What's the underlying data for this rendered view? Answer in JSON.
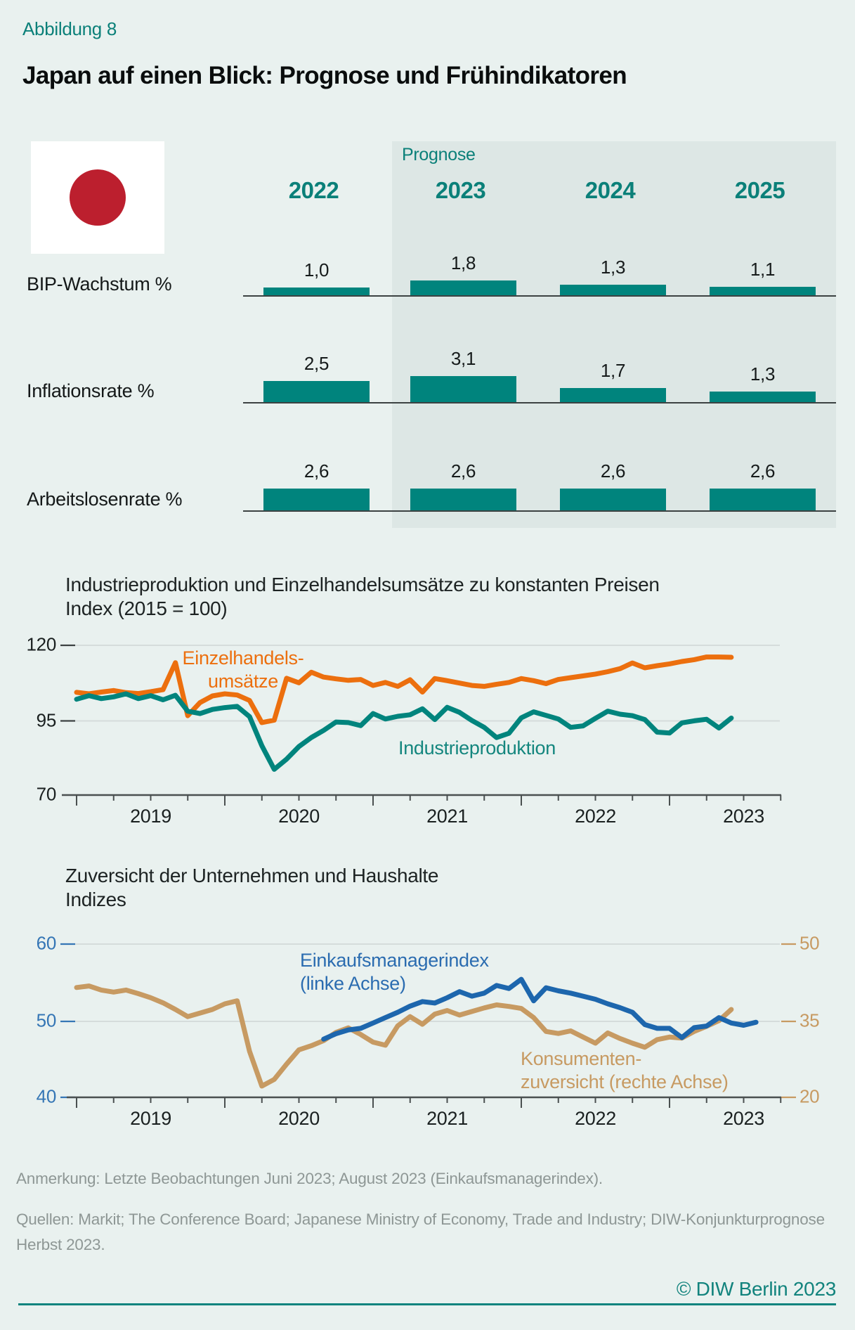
{
  "header": {
    "figure_label": "Abbildung 8",
    "title": "Japan auf einen Blick: Prognose und Frühindikatoren",
    "flag_icon": "japan-flag"
  },
  "colors": {
    "accent_teal": "#00847d",
    "teal_text": "#0b8079",
    "orange": "#ec6f0e",
    "blue": "#1d66ad",
    "tan": "#c79a62",
    "background": "#e9f1ef",
    "forecast_panel": "#dde7e5"
  },
  "forecast_table": {
    "prognose_label": "Prognose",
    "years": [
      "2022",
      "2023",
      "2024",
      "2025"
    ],
    "rows": [
      {
        "label": "BIP-Wachstum %",
        "values": [
          "1,0",
          "1,8",
          "1,3",
          "1,1"
        ],
        "numeric": [
          1.0,
          1.8,
          1.3,
          1.1
        ]
      },
      {
        "label": "Inflationsrate %",
        "values": [
          "2,5",
          "3,1",
          "1,7",
          "1,3"
        ],
        "numeric": [
          2.5,
          3.1,
          1.7,
          1.3
        ]
      },
      {
        "label": "Arbeitslosenrate %",
        "values": [
          "2,6",
          "2,6",
          "2,6",
          "2,6"
        ],
        "numeric": [
          2.6,
          2.6,
          2.6,
          2.6
        ]
      }
    ]
  },
  "chart_data": [
    {
      "type": "line",
      "title": "Industrieproduktion und Einzelhandelsumsätze zu konstanten Preisen",
      "subtitle": "Index (2015 = 100)",
      "x_start": "2019-01",
      "x_end": "2023-06",
      "x_frequency": "monthly",
      "x_tick_years": [
        "2019",
        "2020",
        "2021",
        "2022",
        "2023"
      ],
      "ylim": [
        70,
        120
      ],
      "yticks": [
        120,
        95,
        70
      ],
      "grid": "horizontal",
      "series": [
        {
          "name": "Einzelhandelsumsätze",
          "label_lines": [
            "Einzelhandels-",
            "umsätze"
          ],
          "color": "#ec6f0e",
          "start_month_offset": 0,
          "values": [
            104.3,
            103.8,
            104.4,
            104.9,
            104.2,
            103.9,
            104.5,
            105.2,
            114.2,
            96.5,
            100.9,
            103.1,
            103.8,
            103.4,
            101.6,
            94.2,
            95.0,
            109.0,
            107.5,
            111.0,
            109.4,
            108.8,
            108.3,
            108.6,
            106.6,
            107.6,
            106.3,
            108.5,
            104.4,
            108.9,
            108.2,
            107.4,
            106.6,
            106.3,
            107.0,
            107.6,
            108.9,
            108.2,
            107.2,
            108.6,
            109.2,
            109.8,
            110.4,
            111.2,
            112.2,
            114.1,
            112.5,
            113.2,
            113.8,
            114.6,
            115.2,
            116.1,
            116.1,
            116.0
          ]
        },
        {
          "name": "Industrieproduktion",
          "label_lines": [
            "Industrieproduktion"
          ],
          "color": "#00847d",
          "start_month_offset": 0,
          "values": [
            102.0,
            103.2,
            102.2,
            102.8,
            103.8,
            102.2,
            103.2,
            101.8,
            103.3,
            98.0,
            97.2,
            98.6,
            99.2,
            99.6,
            96.2,
            86.5,
            78.6,
            82.0,
            86.2,
            89.2,
            91.6,
            94.4,
            94.2,
            93.2,
            97.2,
            95.4,
            96.3,
            96.8,
            98.8,
            95.2,
            99.3,
            97.6,
            94.9,
            92.6,
            89.2,
            90.6,
            95.8,
            97.8,
            96.6,
            95.4,
            92.6,
            93.1,
            95.6,
            98.0,
            97.0,
            96.5,
            95.2,
            91.0,
            90.7,
            94.1,
            94.8,
            95.3,
            92.4,
            95.7
          ]
        }
      ]
    },
    {
      "type": "line",
      "title": "Zuversicht der Unternehmen und Haushalte",
      "subtitle": "Indizes",
      "x_start": "2019-01",
      "x_end": "2023-08",
      "x_frequency": "monthly",
      "x_tick_years": [
        "2019",
        "2020",
        "2021",
        "2022",
        "2023"
      ],
      "left_ylim": [
        40,
        60
      ],
      "left_yticks": [
        60,
        50,
        40
      ],
      "right_ylim": [
        20,
        50
      ],
      "right_yticks": [
        50,
        35,
        20
      ],
      "grid": "horizontal",
      "series": [
        {
          "name": "Einkaufsmanagerindex (linke Achse)",
          "label_lines": [
            "Einkaufsmanagerindex",
            "(linke Achse)"
          ],
          "axis": "left",
          "color": "#1d66ad",
          "start": "2020-09",
          "start_month_offset": 20,
          "values": [
            47.6,
            48.3,
            48.8,
            49.0,
            49.7,
            50.4,
            51.1,
            51.9,
            52.5,
            52.3,
            53.0,
            53.8,
            53.2,
            53.6,
            54.6,
            54.2,
            55.4,
            52.6,
            54.3,
            53.9,
            53.6,
            53.2,
            52.8,
            52.2,
            51.7,
            51.1,
            49.5,
            49.0,
            49.0,
            47.8,
            49.1,
            49.3,
            50.4,
            49.7,
            49.4,
            49.8
          ]
        },
        {
          "name": "Konsumentenzuversicht (rechte Achse)",
          "label_lines": [
            "Konsumenten-",
            "zuversicht (rechte Achse)"
          ],
          "axis": "right",
          "color": "#c79a62",
          "start": "2019-01",
          "start_month_offset": 0,
          "values": [
            41.5,
            41.8,
            41.0,
            40.6,
            41.0,
            40.3,
            39.5,
            38.5,
            37.2,
            35.8,
            36.5,
            37.2,
            38.3,
            38.9,
            29.0,
            22.2,
            23.5,
            26.5,
            29.3,
            30.1,
            31.1,
            32.7,
            33.6,
            32.3,
            30.8,
            30.2,
            34.0,
            35.8,
            34.3,
            36.3,
            37.0,
            36.1,
            36.8,
            37.5,
            38.1,
            37.8,
            37.4,
            35.6,
            32.9,
            32.5,
            33.0,
            31.8,
            30.6,
            32.6,
            31.5,
            30.6,
            29.8,
            31.3,
            31.8,
            31.6,
            32.9,
            33.9,
            35.0,
            37.2
          ]
        }
      ]
    }
  ],
  "footer": {
    "note": "Anmerkung: Letzte Beobachtungen Juni 2023; August 2023 (Einkaufsmanagerindex).",
    "sources": [
      "Quellen: Markit; The Conference Board; Japanese Ministry of Economy, Trade and Industry; DIW-Konjunkturprognose",
      "Herbst 2023."
    ],
    "copyright": "© DIW Berlin 2023"
  }
}
